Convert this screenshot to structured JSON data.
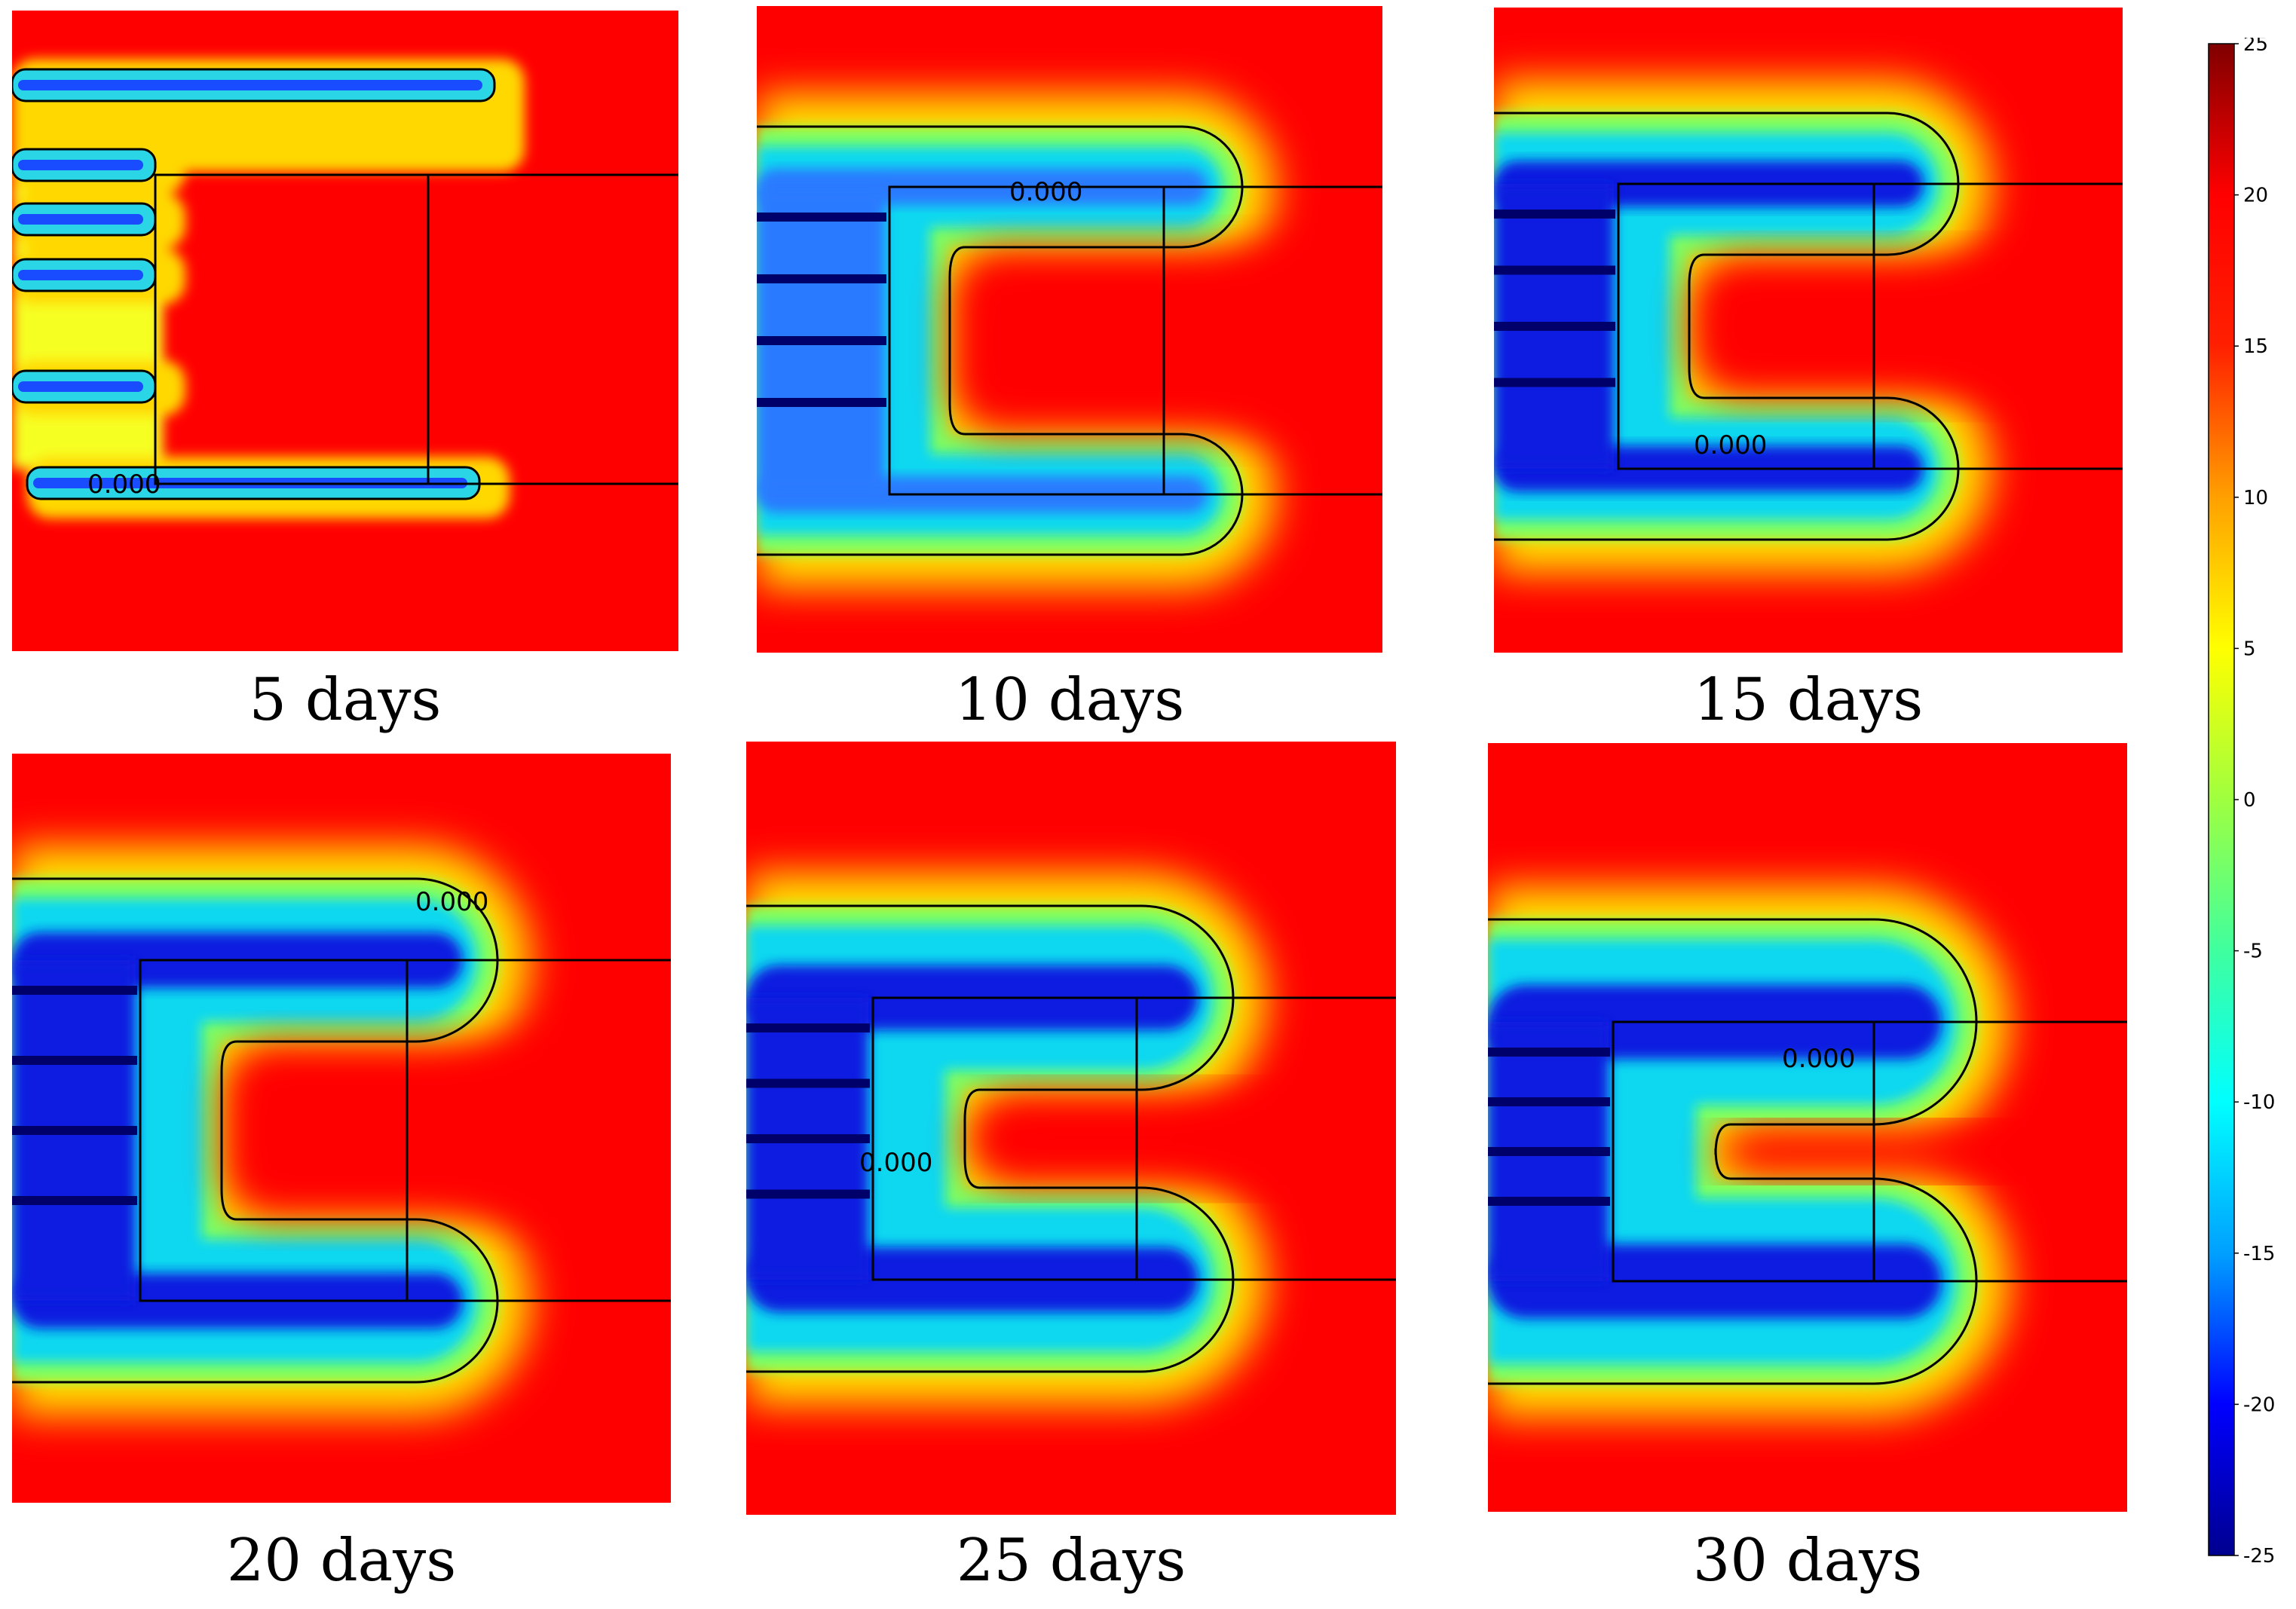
{
  "chart_data": {
    "type": "heatmap",
    "panels": [
      {
        "label": "5 days",
        "contour_label": "0.000"
      },
      {
        "label": "10 days",
        "contour_label": "0.000"
      },
      {
        "label": "15 days",
        "contour_label": "0.000"
      },
      {
        "label": "20 days",
        "contour_label": "0.000"
      },
      {
        "label": "25 days",
        "contour_label": "0.000"
      },
      {
        "label": "30 days",
        "contour_label": "0.000"
      }
    ],
    "colorbar": {
      "min": -25,
      "max": 25,
      "ticks": [
        25,
        20,
        15,
        10,
        5,
        0,
        -5,
        -10,
        -15,
        -20,
        -25
      ],
      "colormap": [
        "#00008f",
        "#0000ff",
        "#00a0ff",
        "#00ffff",
        "#3fff9f",
        "#9fff3f",
        "#ffff00",
        "#ffa000",
        "#ff2000",
        "#ff0000",
        "#800000"
      ]
    },
    "colors": {
      "warm": "#ff0000",
      "cold": "#0018d8",
      "contour": "#000000"
    }
  }
}
